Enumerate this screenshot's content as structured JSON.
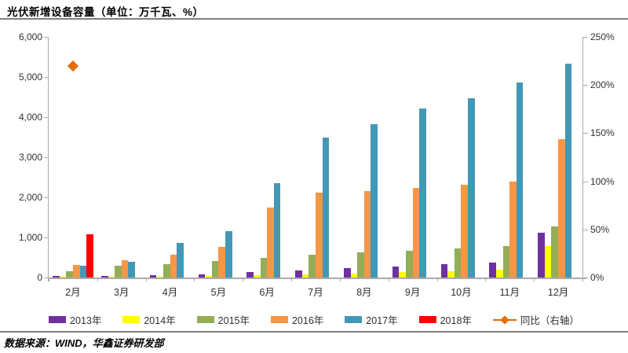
{
  "title": "光伏新增设备容量（单位：万千瓦、%）",
  "source_note": "数据来源：WIND，华鑫证券研发部",
  "colors": {
    "purple_2013": "#7030A0",
    "yellow_2014": "#FFFF00",
    "green_2015": "#94AD57",
    "orange_2016": "#F79646",
    "teal_2017": "#4298B5",
    "red_2018": "#FF0000",
    "yoy_diamond": "#E36C09",
    "axis_line": "#ACACAC",
    "text": "#303030"
  },
  "chart_data": {
    "type": "bar",
    "title": "光伏新增设备容量（单位：万千瓦、%）",
    "categories": [
      "2月",
      "3月",
      "4月",
      "5月",
      "6月",
      "7月",
      "8月",
      "9月",
      "10月",
      "11月",
      "12月"
    ],
    "series": [
      {
        "name": "2013年",
        "color": "#7030A0",
        "values": [
          30,
          40,
          60,
          80,
          130,
          180,
          230,
          280,
          330,
          380,
          1110
        ]
      },
      {
        "name": "2014年",
        "color": "#FFFF00",
        "values": [
          10,
          15,
          20,
          30,
          60,
          80,
          100,
          130,
          160,
          190,
          780
        ]
      },
      {
        "name": "2015年",
        "color": "#94AD57",
        "values": [
          150,
          290,
          330,
          410,
          490,
          560,
          620,
          670,
          720,
          790,
          1270
        ]
      },
      {
        "name": "2016年",
        "color": "#F79646",
        "values": [
          310,
          430,
          570,
          760,
          1750,
          2110,
          2160,
          2240,
          2310,
          2390,
          3450
        ]
      },
      {
        "name": "2017年",
        "color": "#4298B5",
        "values": [
          290,
          390,
          870,
          1150,
          2350,
          3500,
          3820,
          4220,
          4470,
          4860,
          5330
        ]
      },
      {
        "name": "2018年",
        "color": "#FF0000",
        "values": [
          1080,
          null,
          null,
          null,
          null,
          null,
          null,
          null,
          null,
          null,
          null
        ]
      }
    ],
    "scatter_series": {
      "name": "同比（右轴）",
      "axis": "right",
      "marker": "diamond",
      "color": "#E36C09",
      "points": [
        {
          "category": "2月",
          "value_pct": 220
        }
      ]
    },
    "left_axis": {
      "min": 0,
      "max": 6000,
      "step": 1000,
      "tick_labels": [
        "0",
        "1,000",
        "2,000",
        "3,000",
        "4,000",
        "5,000",
        "6,000"
      ]
    },
    "right_axis": {
      "min": 0,
      "max": 250,
      "step": 50,
      "unit": "%",
      "tick_labels": [
        "0%",
        "50%",
        "100%",
        "150%",
        "200%",
        "250%"
      ]
    },
    "grid": false,
    "legend_position": "bottom",
    "legend": [
      "2013年",
      "2014年",
      "2015年",
      "2016年",
      "2017年",
      "2018年",
      "同比（右轴）"
    ]
  }
}
